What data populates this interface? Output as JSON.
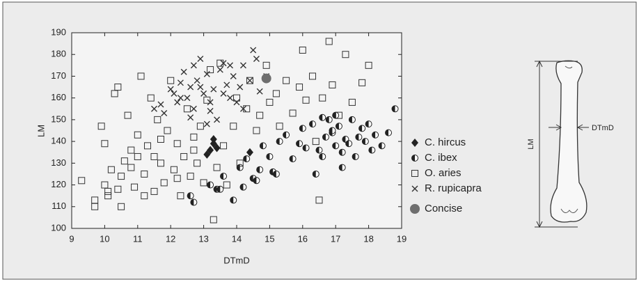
{
  "chart_data": {
    "type": "scatter",
    "xlabel": "DTmD",
    "ylabel": "LM",
    "xlim": [
      9,
      19
    ],
    "xticks": [
      9,
      10,
      11,
      12,
      13,
      14,
      15,
      16,
      17,
      18,
      19
    ],
    "ylim": [
      100,
      190
    ],
    "yticks": [
      100,
      110,
      120,
      130,
      140,
      150,
      160,
      170,
      180,
      190
    ],
    "series": [
      {
        "name": "C. hircus",
        "color": "#222222",
        "marker": "diamond",
        "x": [
          13.3,
          13.1,
          13.4,
          13.2,
          14.4,
          13.3
        ],
        "values": [
          141,
          134,
          137,
          136,
          135,
          139
        ]
      },
      {
        "name": "C. ibex",
        "color": "#222222",
        "marker": "half-circle",
        "x": [
          12.6,
          12.7,
          13.2,
          13.4,
          13.6,
          13.9,
          14.1,
          14.3,
          14.5,
          14.7,
          14.8,
          15.0,
          15.1,
          15.3,
          15.5,
          15.7,
          15.9,
          16.0,
          16.1,
          16.3,
          16.4,
          16.5,
          16.6,
          16.7,
          16.8,
          16.9,
          17.0,
          17.0,
          17.1,
          17.2,
          17.3,
          17.4,
          17.5,
          17.6,
          17.8,
          17.9,
          18.0,
          18.1,
          18.2,
          18.4,
          18.6,
          18.8,
          16.6,
          17.2,
          14.2,
          14.6,
          15.2,
          13.5,
          16.9,
          17.7
        ],
        "values": [
          115,
          112,
          120,
          118,
          124,
          113,
          128,
          132,
          123,
          127,
          138,
          133,
          126,
          140,
          143,
          132,
          139,
          146,
          137,
          148,
          125,
          136,
          133,
          142,
          150,
          144,
          138,
          152,
          147,
          135,
          141,
          139,
          150,
          133,
          146,
          140,
          148,
          136,
          143,
          138,
          144,
          155,
          151,
          128,
          119,
          122,
          125,
          118,
          145,
          142
        ]
      },
      {
        "name": "O. aries",
        "color": "#333333",
        "marker": "square",
        "x": [
          9.3,
          9.7,
          9.7,
          9.9,
          10.0,
          10.0,
          10.1,
          10.1,
          10.3,
          10.4,
          10.5,
          10.5,
          10.6,
          10.7,
          10.8,
          10.9,
          11.0,
          11.0,
          11.1,
          11.2,
          11.3,
          11.4,
          11.5,
          11.6,
          11.7,
          11.8,
          11.9,
          12.0,
          12.1,
          12.2,
          12.3,
          12.4,
          12.5,
          12.6,
          12.7,
          12.8,
          12.9,
          13.0,
          13.1,
          13.2,
          13.3,
          13.4,
          13.5,
          13.6,
          13.7,
          13.9,
          14.0,
          14.1,
          14.3,
          14.4,
          14.6,
          14.7,
          14.9,
          15.0,
          15.2,
          15.3,
          15.5,
          15.7,
          15.9,
          16.0,
          16.1,
          16.3,
          16.4,
          16.5,
          16.6,
          16.8,
          16.9,
          17.1,
          17.3,
          17.5,
          17.8,
          18.0,
          10.2,
          10.8,
          11.2,
          11.7,
          12.2,
          12.7,
          10.4,
          11.5
        ],
        "values": [
          122,
          113,
          110,
          147,
          139,
          120,
          115,
          117,
          162,
          165,
          110,
          124,
          131,
          152,
          128,
          119,
          143,
          133,
          170,
          125,
          138,
          160,
          117,
          150,
          130,
          121,
          145,
          168,
          127,
          139,
          115,
          133,
          155,
          124,
          142,
          130,
          147,
          121,
          159,
          173,
          104,
          128,
          176,
          138,
          120,
          147,
          160,
          130,
          155,
          168,
          145,
          152,
          175,
          158,
          162,
          147,
          168,
          153,
          165,
          182,
          159,
          170,
          140,
          113,
          160,
          186,
          166,
          152,
          180,
          158,
          167,
          175,
          127,
          136,
          115,
          141,
          123,
          136,
          118,
          133
        ]
      },
      {
        "name": "R. rupicapra",
        "color": "#333333",
        "marker": "x",
        "x": [
          11.5,
          11.7,
          11.8,
          12.1,
          12.2,
          12.3,
          12.4,
          12.5,
          12.6,
          12.7,
          12.8,
          12.9,
          13.0,
          13.1,
          13.2,
          13.3,
          13.4,
          13.5,
          13.6,
          13.7,
          13.8,
          13.9,
          14.0,
          14.1,
          14.2,
          14.4,
          14.5,
          14.6,
          14.7,
          14.9,
          12.0,
          12.3,
          12.7,
          13.2,
          13.6,
          14.2,
          12.9,
          13.1,
          12.6,
          13.8
        ],
        "values": [
          155,
          157,
          153,
          162,
          158,
          167,
          172,
          160,
          165,
          175,
          168,
          178,
          162,
          171,
          158,
          164,
          150,
          173,
          176,
          166,
          160,
          170,
          158,
          165,
          175,
          168,
          182,
          178,
          163,
          170,
          164,
          160,
          155,
          154,
          162,
          155,
          165,
          148,
          151,
          175
        ]
      },
      {
        "name": "Concise",
        "color": "#6e6e6e",
        "marker": "circle",
        "x": [
          14.9
        ],
        "values": [
          169
        ]
      }
    ]
  },
  "diagram": {
    "height_label": "LM",
    "width_label": "DTmD"
  }
}
